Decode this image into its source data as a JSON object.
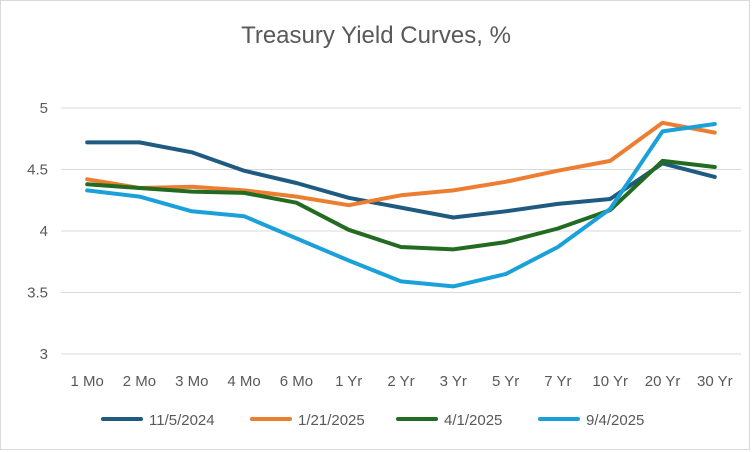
{
  "chart_data": {
    "type": "line",
    "title": "Treasury Yield Curves, %",
    "xlabel": "",
    "ylabel": "",
    "categories": [
      "1 Mo",
      "2 Mo",
      "3 Mo",
      "4 Mo",
      "6 Mo",
      "1 Yr",
      "2 Yr",
      "3 Yr",
      "5 Yr",
      "7 Yr",
      "10 Yr",
      "20 Yr",
      "30 Yr"
    ],
    "ylim": [
      3,
      5
    ],
    "yticks": [
      "3",
      "3.5",
      "4",
      "4.5",
      "5"
    ],
    "grid": true,
    "legend_position": "bottom",
    "series": [
      {
        "name": "11/5/2024",
        "color": "#1f5b80",
        "values": [
          4.72,
          4.72,
          4.64,
          4.49,
          4.39,
          4.27,
          4.19,
          4.11,
          4.16,
          4.22,
          4.26,
          4.55,
          4.44
        ]
      },
      {
        "name": "1/21/2025",
        "color": "#ed7d31",
        "values": [
          4.42,
          4.35,
          4.36,
          4.33,
          4.28,
          4.21,
          4.29,
          4.33,
          4.4,
          4.49,
          4.57,
          4.88,
          4.8
        ]
      },
      {
        "name": "4/1/2025",
        "color": "#236b20",
        "values": [
          4.38,
          4.35,
          4.32,
          4.31,
          4.23,
          4.01,
          3.87,
          3.85,
          3.91,
          4.02,
          4.17,
          4.57,
          4.52
        ]
      },
      {
        "name": "9/4/2025",
        "color": "#1ba1d9",
        "values": [
          4.33,
          4.28,
          4.16,
          4.12,
          3.94,
          3.76,
          3.59,
          3.55,
          3.65,
          3.87,
          4.18,
          4.81,
          4.87
        ]
      }
    ]
  }
}
